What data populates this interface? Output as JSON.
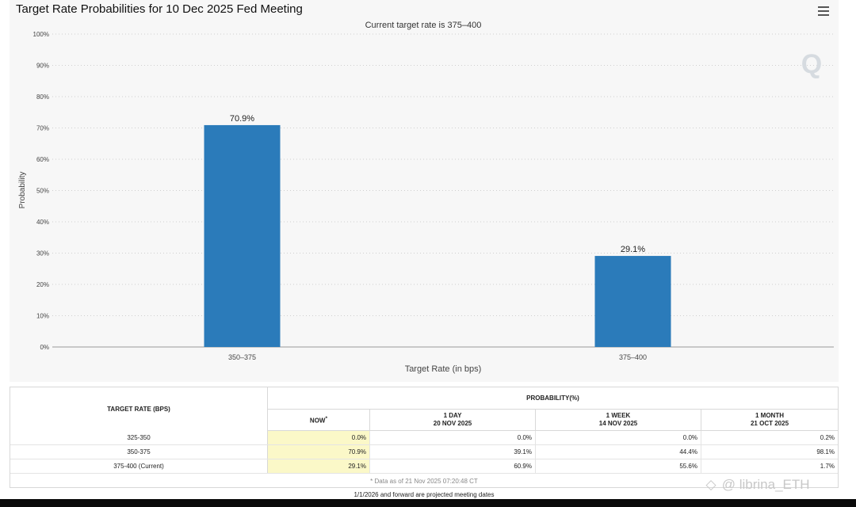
{
  "chart_data": {
    "type": "bar",
    "title": "Target Rate Probabilities for 10 Dec 2025 Fed Meeting",
    "subtitle": "Current target rate is 375–400",
    "xlabel": "Target Rate (in bps)",
    "ylabel": "Probability",
    "categories": [
      "350–375",
      "375–400"
    ],
    "values": [
      70.9,
      29.1
    ],
    "data_labels": [
      "70.9%",
      "29.1%"
    ],
    "ylim": [
      0,
      100
    ],
    "yticks": [
      "0%",
      "10%",
      "20%",
      "30%",
      "40%",
      "50%",
      "60%",
      "70%",
      "80%",
      "90%",
      "100%"
    ],
    "bar_color": "#2b7bba",
    "grid": true,
    "logo_text": "Q"
  },
  "table": {
    "rate_header": "TARGET RATE (BPS)",
    "prob_header": "PROBABILITY(%)",
    "columns": [
      {
        "label": "NOW",
        "marker": "*",
        "date": ""
      },
      {
        "label": "1 DAY",
        "date": "20 NOV 2025"
      },
      {
        "label": "1 WEEK",
        "date": "14 NOV 2025"
      },
      {
        "label": "1 MONTH",
        "date": "21 OCT 2025"
      }
    ],
    "rows": [
      {
        "rate": "325-350",
        "now": "0.0%",
        "day": "0.0%",
        "week": "0.0%",
        "month": "0.2%"
      },
      {
        "rate": "350-375",
        "now": "70.9%",
        "day": "39.1%",
        "week": "44.4%",
        "month": "98.1%"
      },
      {
        "rate": "375-400 (Current)",
        "now": "29.1%",
        "day": "60.9%",
        "week": "55.6%",
        "month": "1.7%"
      }
    ],
    "data_note": "* Data as of 21 Nov 2025 07:20:48 CT"
  },
  "footer_note": "1/1/2026 and forward are projected meeting dates",
  "watermark": "@ librina_ETH",
  "icons": {
    "menu": "hamburger-menu-icon",
    "watermark_logo": "diamond-logo-icon"
  }
}
